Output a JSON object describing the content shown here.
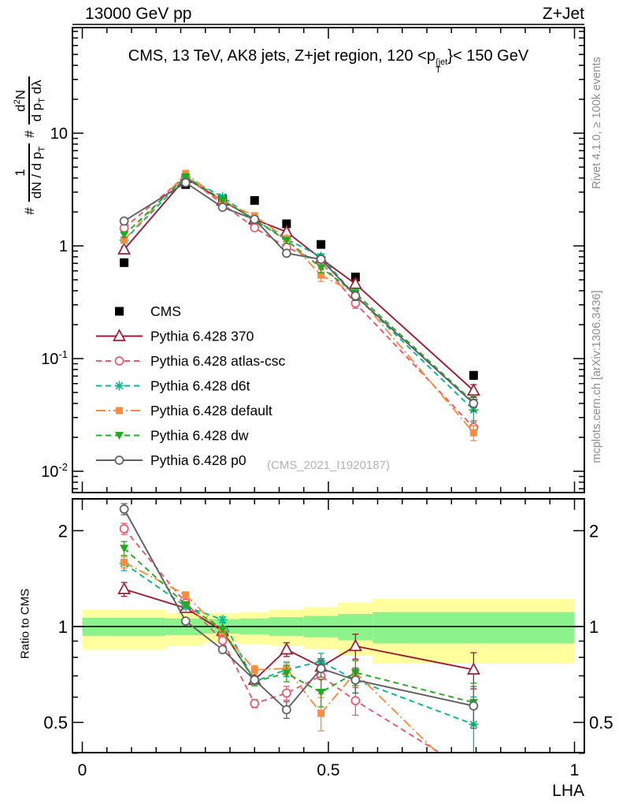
{
  "header": {
    "left": "13000 GeV pp",
    "right": "Z+Jet"
  },
  "panel_title": {
    "pre": "CMS, 13 TeV, AK8 jets, Z+jet region, 120 <p",
    "sup": "{jet",
    "sub": "T",
    "post": "}< 150 GeV"
  },
  "watermark": "(CMS_2021_I1920187)",
  "side_notes": {
    "top": "Rivet 4.1.0, ≥ 100k events",
    "bottom": "mcplots.cern.ch [arXiv:1306.3436]"
  },
  "axis_labels": {
    "x": "LHA",
    "ratio_y": "Ratio to CMS",
    "main_y": {
      "hash1": "#",
      "f1_num": "1",
      "f1_den": "dN / d p",
      "f1_den_sub": "T",
      "hash2": "#",
      "f2_num_a": "d",
      "f2_num_sup": "2",
      "f2_num_b": "N",
      "f2_den_a": "d p",
      "f2_den_sub": "T",
      "f2_den_b": " dλ"
    }
  },
  "chart_data": {
    "type": "line",
    "title": "CMS, 13 TeV, AK8 jets, Z+jet region, 120 <pT^{jet}< 150 GeV",
    "xlabel": "LHA",
    "x_range": [
      -0.02,
      1.02
    ],
    "x_ticks": [
      {
        "v": 0,
        "t": "0"
      },
      {
        "v": 0.5,
        "t": "0.5"
      },
      {
        "v": 1,
        "t": "1"
      }
    ],
    "x_minor_step": 0.05,
    "main_panel": {
      "y_scale": "log",
      "y_range": [
        0.0065,
        86
      ],
      "y_ticks": [
        {
          "v": 10,
          "t": "10"
        },
        {
          "v": 1,
          "t": "1"
        },
        {
          "v": 0.1,
          "t": "10",
          "e": "-1"
        },
        {
          "v": 0.01,
          "t": "10",
          "e": "-2"
        }
      ]
    },
    "ratio_panel": {
      "y_scale": "log",
      "y_range": [
        0.402,
        2.52
      ],
      "reference": 1,
      "y_ticks": [
        {
          "v": 2,
          "t": "2"
        },
        {
          "v": 1,
          "t": "1"
        },
        {
          "v": 0.5,
          "t": "0.5"
        }
      ],
      "y_minor_ticks": [
        0.4,
        0.6,
        0.7,
        0.8,
        0.9
      ]
    },
    "x": [
      0.085,
      0.21,
      0.285,
      0.35,
      0.415,
      0.485,
      0.555,
      0.795
    ],
    "series": [
      {
        "id": "cms",
        "label": "CMS",
        "color": "#000000",
        "marker": "square-filled",
        "marker_size": 11,
        "line": "none",
        "values": [
          0.71,
          3.5,
          2.6,
          2.53,
          1.57,
          1.03,
          0.53,
          0.071
        ],
        "rel_err": [
          0.03,
          0.015,
          0.015,
          0.02,
          0.025,
          0.03,
          0.04,
          0.08
        ]
      },
      {
        "id": "pythia-370",
        "label": "Pythia 6.428 370",
        "color": "#9e1b32",
        "marker": "triangle-up-open",
        "marker_size": 13,
        "line": "solid",
        "values": [
          0.93,
          4.0,
          2.52,
          1.72,
          1.33,
          0.77,
          0.46,
          0.052
        ],
        "rel_err": [
          0.05,
          0.02,
          0.02,
          0.03,
          0.05,
          0.06,
          0.09,
          0.13
        ]
      },
      {
        "id": "pythia-atlas-csc",
        "label": "Pythia 6.428 atlas-csc",
        "color": "#f0566b",
        "marker": "circle-open",
        "marker_size": 10,
        "line": "dashed",
        "values": [
          1.44,
          4.15,
          2.35,
          1.45,
          0.97,
          0.72,
          0.31,
          0.0245
        ],
        "rel_err": [
          0.04,
          0.02,
          0.02,
          0.03,
          0.05,
          0.12,
          0.1,
          0.15
        ]
      },
      {
        "id": "pythia-d6t",
        "label": "Pythia 6.428 d6t",
        "color": "#00b98d",
        "marker": "asterisk",
        "marker_size": 11,
        "line": "dashed",
        "values": [
          1.12,
          4.05,
          2.73,
          1.7,
          1.15,
          0.8,
          0.36,
          0.035
        ],
        "rel_err": [
          0.05,
          0.02,
          0.02,
          0.03,
          0.05,
          0.06,
          0.09,
          0.22
        ]
      },
      {
        "id": "pythia-default",
        "label": "Pythia 6.428 default",
        "color": "#ff8b3e",
        "marker": "square-filled",
        "marker_size": 9,
        "line": "dashdot",
        "values": [
          1.13,
          4.4,
          2.5,
          1.85,
          1.16,
          0.55,
          0.38,
          0.022
        ],
        "rel_err": [
          0.04,
          0.02,
          0.02,
          0.03,
          0.05,
          0.12,
          0.09,
          0.15
        ]
      },
      {
        "id": "pythia-dw",
        "label": "Pythia 6.428 dw",
        "color": "#22aa22",
        "marker": "triangle-down-filled",
        "marker_size": 11,
        "line": "dashed",
        "values": [
          1.25,
          4.1,
          2.55,
          1.7,
          1.12,
          0.64,
          0.38,
          0.041
        ],
        "rel_err": [
          0.05,
          0.02,
          0.02,
          0.03,
          0.06,
          0.1,
          0.09,
          0.15
        ]
      },
      {
        "id": "pythia-p0",
        "label": "Pythia 6.428 p0",
        "color": "#606060",
        "marker": "circle-open",
        "marker_size": 10,
        "line": "solid",
        "values": [
          1.66,
          3.64,
          2.2,
          1.72,
          0.86,
          0.76,
          0.36,
          0.04
        ],
        "rel_err": [
          0.04,
          0.015,
          0.02,
          0.03,
          0.06,
          0.06,
          0.09,
          0.15
        ]
      }
    ],
    "uncertainty_bands": {
      "colors": {
        "outer": "#ffff9e",
        "inner": "#8cf28c"
      },
      "segments": [
        {
          "x0": 0.0,
          "x1": 0.17,
          "outer": [
            0.845,
            1.13
          ],
          "inner": [
            0.935,
            1.065
          ]
        },
        {
          "x0": 0.17,
          "x1": 0.245,
          "outer": [
            0.87,
            1.1
          ],
          "inner": [
            0.94,
            1.06
          ]
        },
        {
          "x0": 0.245,
          "x1": 0.32,
          "outer": [
            0.89,
            1.1
          ],
          "inner": [
            0.95,
            1.055
          ]
        },
        {
          "x0": 0.32,
          "x1": 0.38,
          "outer": [
            0.88,
            1.11
          ],
          "inner": [
            0.945,
            1.06
          ]
        },
        {
          "x0": 0.38,
          "x1": 0.45,
          "outer": [
            0.87,
            1.13
          ],
          "inner": [
            0.935,
            1.07
          ]
        },
        {
          "x0": 0.45,
          "x1": 0.52,
          "outer": [
            0.85,
            1.15
          ],
          "inner": [
            0.925,
            1.08
          ]
        },
        {
          "x0": 0.52,
          "x1": 0.59,
          "outer": [
            0.81,
            1.19
          ],
          "inner": [
            0.905,
            1.095
          ]
        },
        {
          "x0": 0.59,
          "x1": 1.0,
          "outer": [
            0.765,
            1.22
          ],
          "inner": [
            0.885,
            1.11
          ]
        }
      ]
    },
    "legend_position": "middle-left"
  }
}
